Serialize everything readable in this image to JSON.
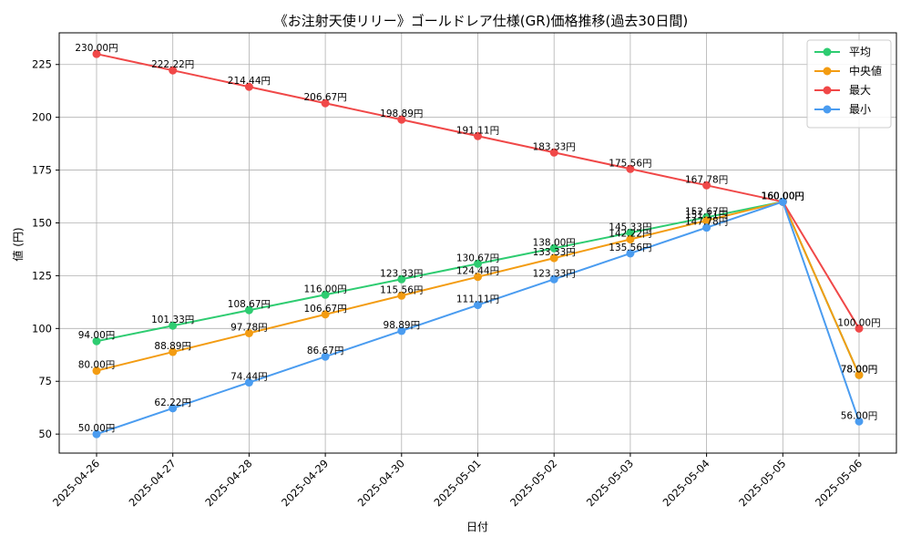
{
  "chart_data": {
    "type": "line",
    "title": "《お注射天使リリー》ゴールドレア仕様(GR)価格推移(過去30日間)",
    "xlabel": "日付",
    "ylabel": "値 (円)",
    "ylim": [
      41,
      240
    ],
    "yticks": [
      50,
      75,
      100,
      125,
      150,
      175,
      200,
      225
    ],
    "grid": true,
    "legend_position": "top-right",
    "label_suffix": "円",
    "categories": [
      "2025-04-26",
      "2025-04-27",
      "2025-04-28",
      "2025-04-29",
      "2025-04-30",
      "2025-05-01",
      "2025-05-02",
      "2025-05-03",
      "2025-05-04",
      "2025-05-05",
      "2025-05-06"
    ],
    "series": [
      {
        "name": "平均",
        "color": "#2ecc71",
        "values": [
          94.0,
          101.33,
          108.67,
          116.0,
          123.33,
          130.67,
          138.0,
          145.33,
          152.67,
          160.0,
          78.0
        ]
      },
      {
        "name": "中央値",
        "color": "#f39c12",
        "values": [
          80.0,
          88.89,
          97.78,
          106.67,
          115.56,
          124.44,
          133.33,
          142.22,
          151.11,
          160.0,
          78.0
        ]
      },
      {
        "name": "最大",
        "color": "#f04848",
        "values": [
          230.0,
          222.22,
          214.44,
          206.67,
          198.89,
          191.11,
          183.33,
          175.56,
          167.78,
          160.0,
          100.0
        ]
      },
      {
        "name": "最小",
        "color": "#4a9cf0",
        "values": [
          50.0,
          62.22,
          74.44,
          86.67,
          98.89,
          111.11,
          123.33,
          135.56,
          147.78,
          160.0,
          56.0
        ]
      }
    ]
  }
}
